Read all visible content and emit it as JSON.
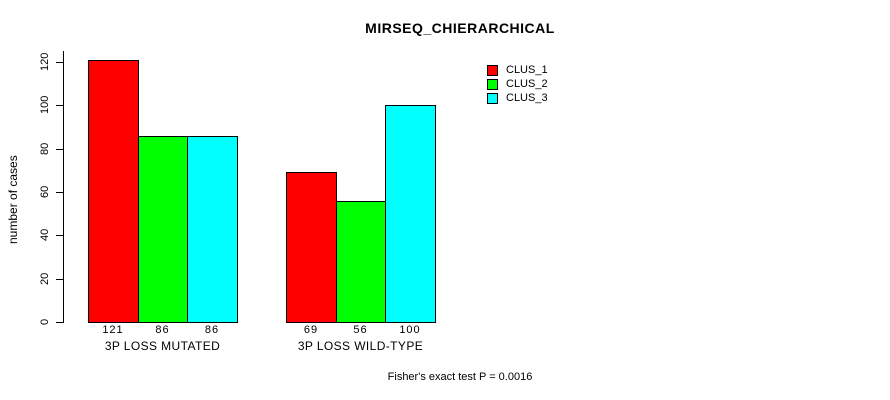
{
  "chart_data": {
    "type": "bar",
    "title": "MIRSEQ_CHIERARCHICAL",
    "ylabel": "number of cases",
    "xlabel": "",
    "categories": [
      "3P LOSS MUTATED",
      "3P LOSS WILD-TYPE"
    ],
    "series": [
      {
        "name": "CLUS_1",
        "color": "#FF0000",
        "values": [
          121,
          69
        ]
      },
      {
        "name": "CLUS_2",
        "color": "#00FF00",
        "values": [
          86,
          56
        ]
      },
      {
        "name": "CLUS_3",
        "color": "#00FFFF",
        "values": [
          86,
          100
        ]
      }
    ],
    "bar_value_labels": [
      [
        "121",
        "86",
        "86"
      ],
      [
        "69",
        "56",
        "100"
      ]
    ],
    "yticks": [
      0,
      20,
      40,
      60,
      80,
      100,
      120
    ],
    "ylim": [
      0,
      120
    ],
    "grid": false,
    "legend_position": "top-right",
    "bar_border_color": "#000000",
    "background_color": "#FFFFFF",
    "annotation": "Fisher's exact test P = 0.0016"
  }
}
